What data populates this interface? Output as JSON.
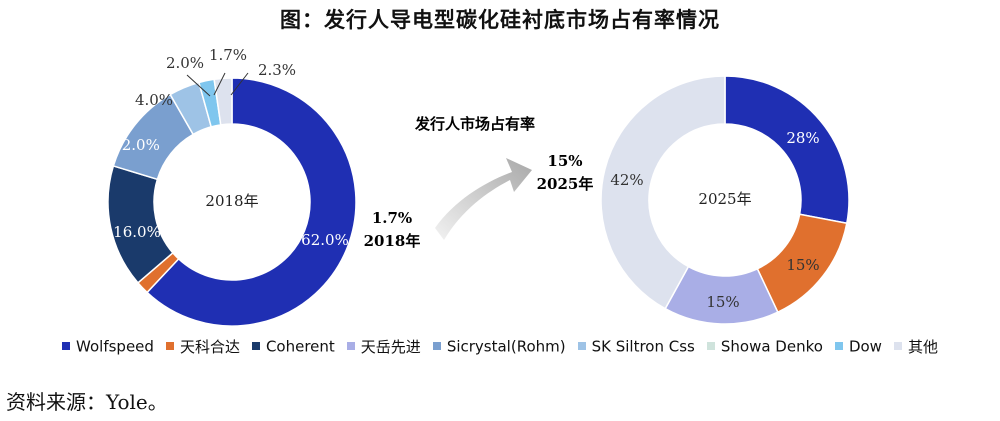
{
  "page": {
    "title": "图：发行人导电型碳化硅衬底市场占有率情况",
    "source": "资料来源：Yole。"
  },
  "chart_data": [
    {
      "type": "pie",
      "subtype": "donut",
      "center_label": "2018年",
      "categories": [
        "Wolfspeed",
        "天科合达",
        "Coherent",
        "天岳先进",
        "Sicrystal(Rohm)",
        "SK Siltron Css",
        "Showa Denko",
        "Dow",
        "其他"
      ],
      "values": [
        62.0,
        1.7,
        16.0,
        0,
        12.0,
        4.0,
        0,
        2.0,
        2.3
      ],
      "labels": [
        "62.0%",
        "1.7%",
        "16.0%",
        "",
        "12.0%",
        "4.0%",
        "",
        "2.0%",
        "2.3%"
      ]
    },
    {
      "type": "pie",
      "subtype": "donut",
      "center_label": "2025年",
      "categories": [
        "Wolfspeed",
        "天科合达",
        "天岳先进",
        "其他"
      ],
      "values": [
        28,
        15,
        15,
        42
      ],
      "labels": [
        "28%",
        "15%",
        "15%",
        "42%"
      ]
    }
  ],
  "annotation": {
    "heading": "发行人市场占有率",
    "start_value": "1.7%",
    "start_year": "2018年",
    "end_value": "15%",
    "end_year": "2025年"
  },
  "legend": [
    {
      "label": "Wolfspeed",
      "color": "#1f2fb3"
    },
    {
      "label": "天科合达",
      "color": "#e0702e"
    },
    {
      "label": "Coherent",
      "color": "#1a3a6b"
    },
    {
      "label": "天岳先进",
      "color": "#a9aee6"
    },
    {
      "label": "Sicrystal(Rohm)",
      "color": "#7a9fcf"
    },
    {
      "label": "SK Siltron Css",
      "color": "#9ec3e6"
    },
    {
      "label": "Showa Denko",
      "color": "#cfe3dc"
    },
    {
      "label": "Dow",
      "color": "#7fc6ee"
    },
    {
      "label": "其他",
      "color": "#dde2ee"
    }
  ]
}
